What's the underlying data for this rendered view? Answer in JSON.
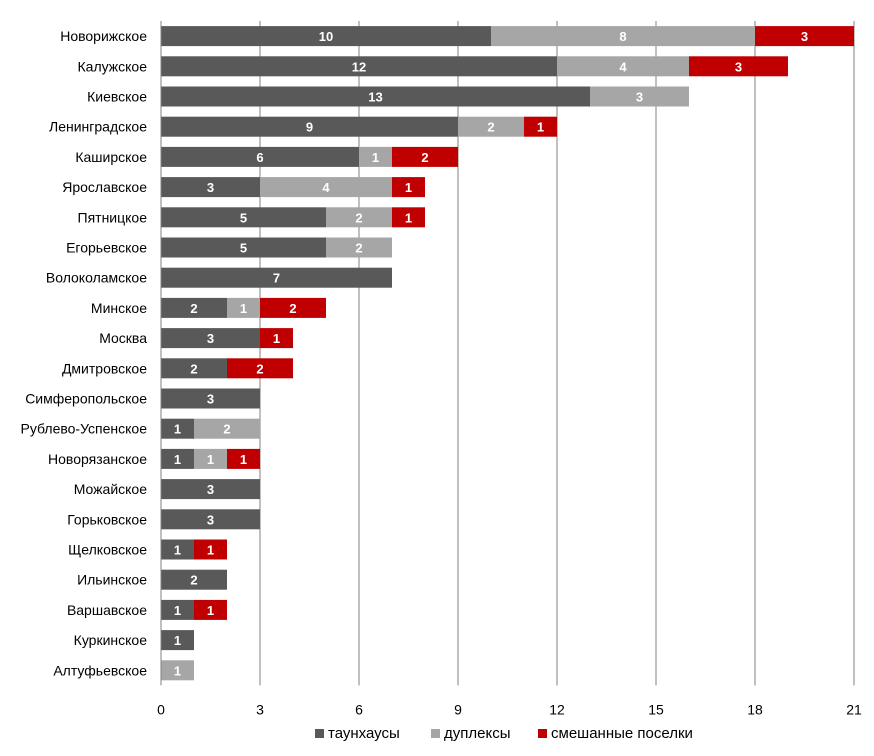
{
  "chart_data": {
    "type": "bar",
    "orientation": "horizontal",
    "stacked": true,
    "categories": [
      "Новорижское",
      "Калужское",
      "Киевское",
      "Ленинградское",
      "Каширское",
      "Ярославское",
      "Пятницкое",
      "Егорьевское",
      "Волоколамское",
      "Минское",
      "Москва",
      "Дмитровское",
      "Симферопольское",
      "Рублево-Успенское",
      "Новорязанское",
      "Можайское",
      "Горьковское",
      "Щелковское",
      "Ильинское",
      "Варшавское",
      "Куркинское",
      "Алтуфьевское"
    ],
    "series": [
      {
        "name": "таунхаусы",
        "color": "#595959",
        "values": [
          10,
          12,
          13,
          9,
          6,
          3,
          5,
          5,
          7,
          2,
          3,
          2,
          3,
          1,
          1,
          3,
          3,
          1,
          2,
          1,
          1,
          0
        ]
      },
      {
        "name": "дуплексы",
        "color": "#a6a6a6",
        "values": [
          8,
          4,
          3,
          2,
          1,
          4,
          2,
          2,
          0,
          1,
          0,
          0,
          0,
          2,
          1,
          0,
          0,
          0,
          0,
          0,
          0,
          1
        ]
      },
      {
        "name": "смешанные поселки",
        "color": "#c00000",
        "values": [
          3,
          3,
          0,
          1,
          2,
          1,
          1,
          0,
          0,
          2,
          1,
          2,
          0,
          0,
          1,
          0,
          0,
          1,
          0,
          1,
          0,
          0
        ]
      }
    ],
    "xlim": [
      0,
      21
    ],
    "x_ticks": [
      0,
      3,
      6,
      9,
      12,
      15,
      18,
      21
    ],
    "grid": "vertical",
    "legend_position": "bottom",
    "data_labels": true,
    "title": "",
    "xlabel": "",
    "ylabel": ""
  }
}
